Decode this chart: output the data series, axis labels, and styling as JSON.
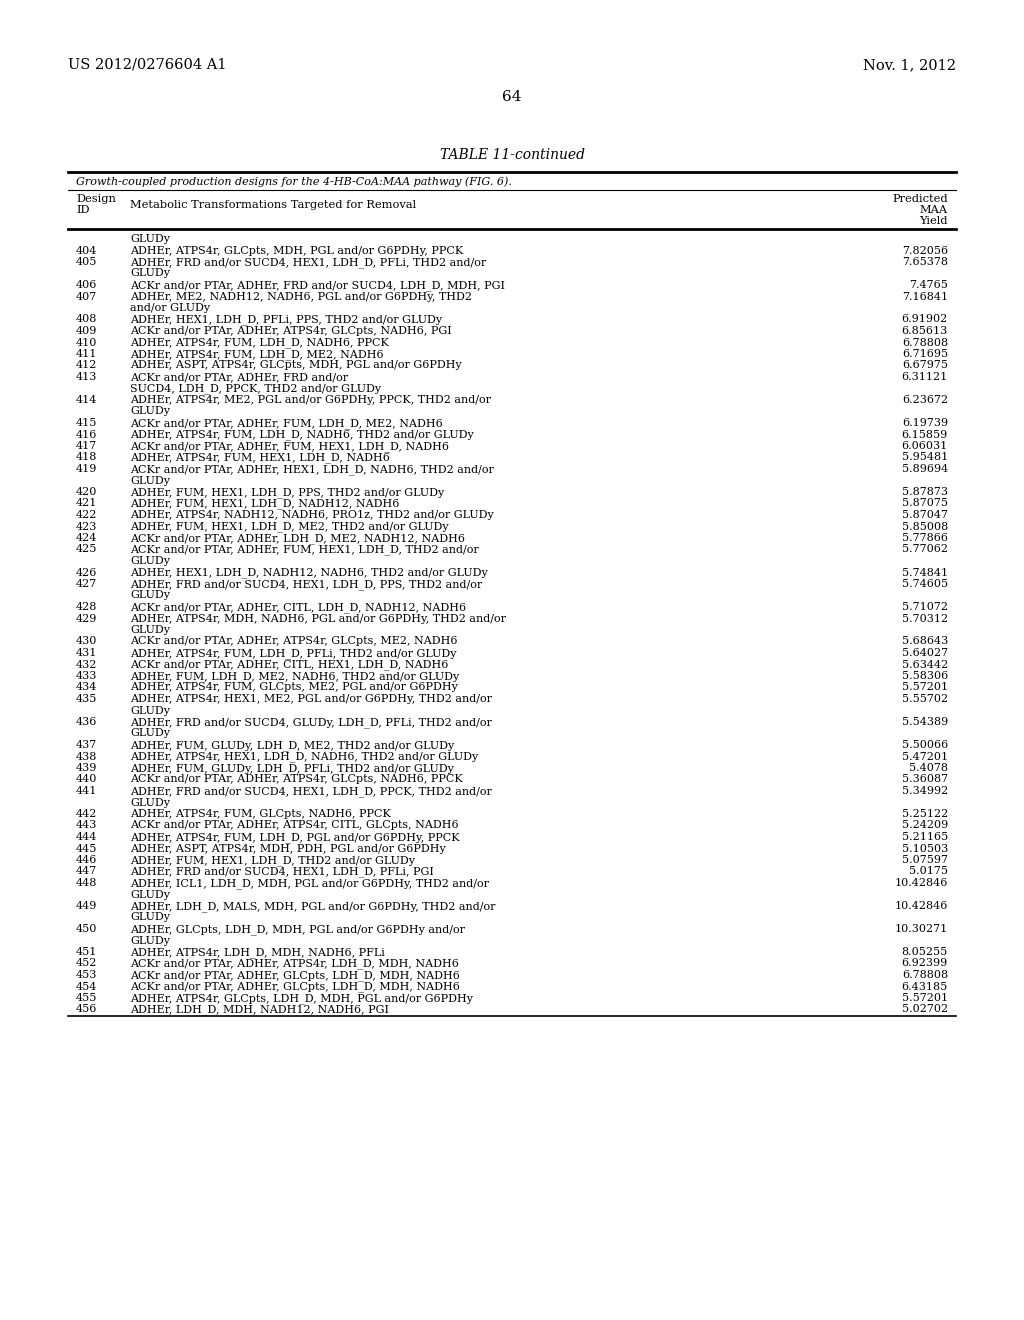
{
  "header_left": "US 2012/0276604 A1",
  "header_right": "Nov. 1, 2012",
  "page_number": "64",
  "table_title": "TABLE 11-continued",
  "table_subtitle": "Growth-coupled production designs for the 4-HB-CoA:MAA pathway (FIG. 6).",
  "rows": [
    [
      "",
      "GLUDy",
      ""
    ],
    [
      "404",
      "ADHEr, ATPS4r, GLCpts, MDH, PGL and/or G6PDHy, PPCK",
      "7.82056"
    ],
    [
      "405",
      "ADHEr, FRD and/or SUCD4, HEX1, LDH_D, PFLi, THD2 and/or",
      "7.65378"
    ],
    [
      "",
      "GLUDy",
      ""
    ],
    [
      "406",
      "ACKr and/or PTAr, ADHEr, FRD and/or SUCD4, LDH_D, MDH, PGI",
      "7.4765"
    ],
    [
      "407",
      "ADHEr, ME2, NADH12, NADH6, PGL and/or G6PDHy, THD2",
      "7.16841"
    ],
    [
      "",
      "and/or GLUDy",
      ""
    ],
    [
      "408",
      "ADHEr, HEX1, LDH_D, PFLi, PPS, THD2 and/or GLUDy",
      "6.91902"
    ],
    [
      "409",
      "ACKr and/or PTAr, ADHEr, ATPS4r, GLCpts, NADH6, PGI",
      "6.85613"
    ],
    [
      "410",
      "ADHEr, ATPS4r, FUM, LDH_D, NADH6, PPCK",
      "6.78808"
    ],
    [
      "411",
      "ADHEr, ATPS4r, FUM, LDH_D, ME2, NADH6",
      "6.71695"
    ],
    [
      "412",
      "ADHEr, ASPT, ATPS4r, GLCpts, MDH, PGL and/or G6PDHy",
      "6.67975"
    ],
    [
      "413",
      "ACKr and/or PTAr, ADHEr, FRD and/or",
      "6.31121"
    ],
    [
      "",
      "SUCD4, LDH_D, PPCK, THD2 and/or GLUDy",
      ""
    ],
    [
      "414",
      "ADHEr, ATPS4r, ME2, PGL and/or G6PDHy, PPCK, THD2 and/or",
      "6.23672"
    ],
    [
      "",
      "GLUDy",
      ""
    ],
    [
      "415",
      "ACKr and/or PTAr, ADHEr, FUM, LDH_D, ME2, NADH6",
      "6.19739"
    ],
    [
      "416",
      "ADHEr, ATPS4r, FUM, LDH_D, NADH6, THD2 and/or GLUDy",
      "6.15859"
    ],
    [
      "417",
      "ACKr and/or PTAr, ADHEr, FUM, HEX1, LDH_D, NADH6",
      "6.06031"
    ],
    [
      "418",
      "ADHEr, ATPS4r, FUM, HEX1, LDH_D, NADH6",
      "5.95481"
    ],
    [
      "419",
      "ACKr and/or PTAr, ADHEr, HEX1, LDH_D, NADH6, THD2 and/or",
      "5.89694"
    ],
    [
      "",
      "GLUDy",
      ""
    ],
    [
      "420",
      "ADHEr, FUM, HEX1, LDH_D, PPS, THD2 and/or GLUDy",
      "5.87873"
    ],
    [
      "421",
      "ADHEr, FUM, HEX1, LDH_D, NADH12, NADH6",
      "5.87075"
    ],
    [
      "422",
      "ADHEr, ATPS4r, NADH12, NADH6, PRO1z, THD2 and/or GLUDy",
      "5.87047"
    ],
    [
      "423",
      "ADHEr, FUM, HEX1, LDH_D, ME2, THD2 and/or GLUDy",
      "5.85008"
    ],
    [
      "424",
      "ACKr and/or PTAr, ADHEr, LDH_D, ME2, NADH12, NADH6",
      "5.77866"
    ],
    [
      "425",
      "ACKr and/or PTAr, ADHEr, FUM, HEX1, LDH_D, THD2 and/or",
      "5.77062"
    ],
    [
      "",
      "GLUDy",
      ""
    ],
    [
      "426",
      "ADHEr, HEX1, LDH_D, NADH12, NADH6, THD2 and/or GLUDy",
      "5.74841"
    ],
    [
      "427",
      "ADHEr, FRD and/or SUCD4, HEX1, LDH_D, PPS, THD2 and/or",
      "5.74605"
    ],
    [
      "",
      "GLUDy",
      ""
    ],
    [
      "428",
      "ACKr and/or PTAr, ADHEr, CITL, LDH_D, NADH12, NADH6",
      "5.71072"
    ],
    [
      "429",
      "ADHEr, ATPS4r, MDH, NADH6, PGL and/or G6PDHy, THD2 and/or",
      "5.70312"
    ],
    [
      "",
      "GLUDy",
      ""
    ],
    [
      "430",
      "ACKr and/or PTAr, ADHEr, ATPS4r, GLCpts, ME2, NADH6",
      "5.68643"
    ],
    [
      "431",
      "ADHEr, ATPS4r, FUM, LDH_D, PFLi, THD2 and/or GLUDy",
      "5.64027"
    ],
    [
      "432",
      "ACKr and/or PTAr, ADHEr, CITL, HEX1, LDH_D, NADH6",
      "5.63442"
    ],
    [
      "433",
      "ADHEr, FUM, LDH_D, ME2, NADH6, THD2 and/or GLUDy",
      "5.58306"
    ],
    [
      "434",
      "ADHEr, ATPS4r, FUM, GLCpts, ME2, PGL and/or G6PDHy",
      "5.57201"
    ],
    [
      "435",
      "ADHEr, ATPS4r, HEX1, ME2, PGL and/or G6PDHy, THD2 and/or",
      "5.55702"
    ],
    [
      "",
      "GLUDy",
      ""
    ],
    [
      "436",
      "ADHEr, FRD and/or SUCD4, GLUDy, LDH_D, PFLi, THD2 and/or",
      "5.54389"
    ],
    [
      "",
      "GLUDy",
      ""
    ],
    [
      "437",
      "ADHEr, FUM, GLUDy, LDH_D, ME2, THD2 and/or GLUDy",
      "5.50066"
    ],
    [
      "438",
      "ADHEr, ATPS4r, HEX1, LDH_D, NADH6, THD2 and/or GLUDy",
      "5.47201"
    ],
    [
      "439",
      "ADHEr, FUM, GLUDy, LDH_D, PFLi, THD2 and/or GLUDy",
      "5.4078"
    ],
    [
      "440",
      "ACKr and/or PTAr, ADHEr, ATPS4r, GLCpts, NADH6, PPCK",
      "5.36087"
    ],
    [
      "441",
      "ADHEr, FRD and/or SUCD4, HEX1, LDH_D, PPCK, THD2 and/or",
      "5.34992"
    ],
    [
      "",
      "GLUDy",
      ""
    ],
    [
      "442",
      "ADHEr, ATPS4r, FUM, GLCpts, NADH6, PPCK",
      "5.25122"
    ],
    [
      "443",
      "ACKr and/or PTAr, ADHEr, ATPS4r, CITL, GLCpts, NADH6",
      "5.24209"
    ],
    [
      "444",
      "ADHEr, ATPS4r, FUM, LDH_D, PGL and/or G6PDHy, PPCK",
      "5.21165"
    ],
    [
      "445",
      "ADHEr, ASPT, ATPS4r, MDH, PDH, PGL and/or G6PDHy",
      "5.10503"
    ],
    [
      "446",
      "ADHEr, FUM, HEX1, LDH_D, THD2 and/or GLUDy",
      "5.07597"
    ],
    [
      "447",
      "ADHEr, FRD and/or SUCD4, HEX1, LDH_D, PFLi, PGI",
      "5.0175"
    ],
    [
      "448",
      "ADHEr, ICL1, LDH_D, MDH, PGL and/or G6PDHy, THD2 and/or",
      "10.42846"
    ],
    [
      "",
      "GLUDy",
      ""
    ],
    [
      "449",
      "ADHEr, LDH_D, MALS, MDH, PGL and/or G6PDHy, THD2 and/or",
      "10.42846"
    ],
    [
      "",
      "GLUDy",
      ""
    ],
    [
      "450",
      "ADHEr, GLCpts, LDH_D, MDH, PGL and/or G6PDHy and/or",
      "10.30271"
    ],
    [
      "",
      "GLUDy",
      ""
    ],
    [
      "451",
      "ADHEr, ATPS4r, LDH_D, MDH, NADH6, PFLi",
      "8.05255"
    ],
    [
      "452",
      "ACKr and/or PTAr, ADHEr, ATPS4r, LDH_D, MDH, NADH6",
      "6.92399"
    ],
    [
      "453",
      "ACKr and/or PTAr, ADHEr, GLCpts, LDH_D, MDH, NADH6",
      "6.78808"
    ],
    [
      "454",
      "ACKr and/or PTAr, ADHEr, GLCpts, LDH_D, MDH, NADH6",
      "6.43185"
    ],
    [
      "455",
      "ADHEr, ATPS4r, GLCpts, LDH_D, MDH, PGL and/or G6PDHy",
      "5.57201"
    ],
    [
      "456",
      "ADHEr, LDH_D, MDH, NADH12, NADH6, PGI",
      "5.02702"
    ]
  ]
}
